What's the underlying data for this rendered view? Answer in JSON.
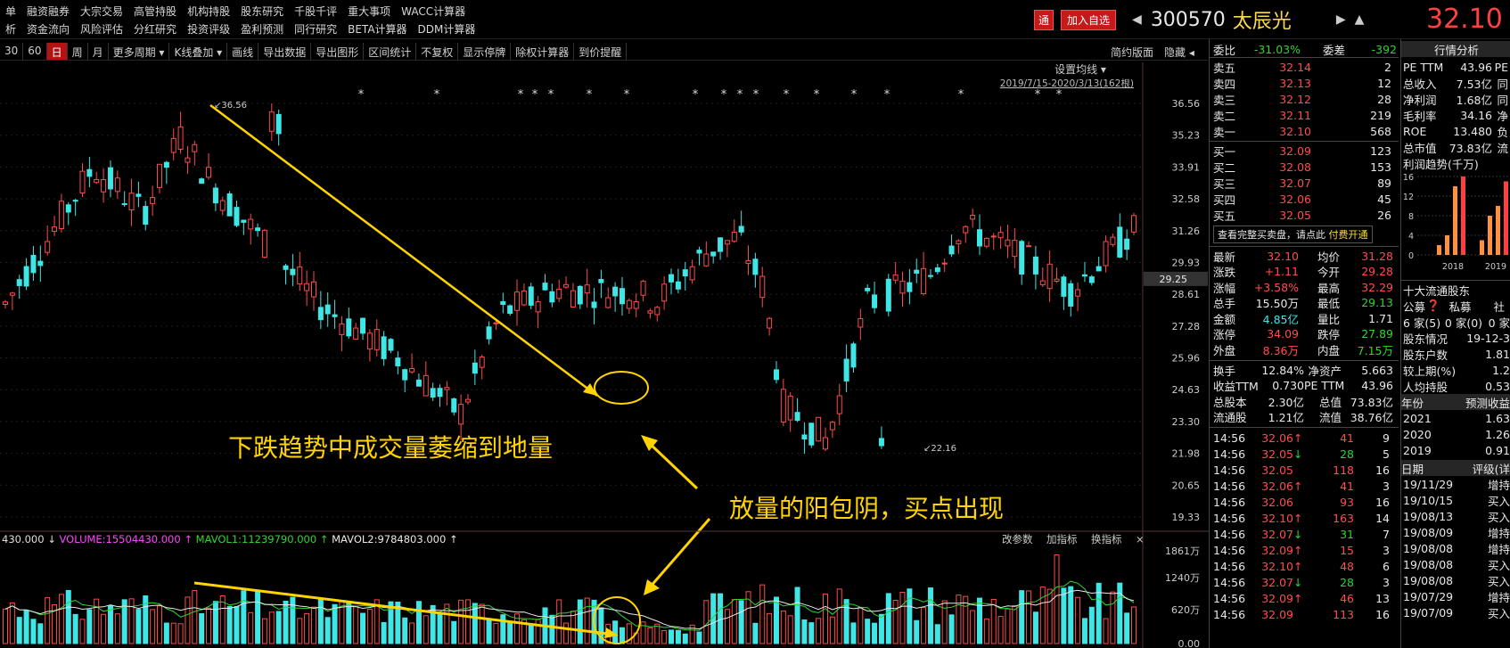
{
  "menu": {
    "row1": [
      "单",
      "融资融券",
      "大宗交易",
      "高管持股",
      "机构持股",
      "股东研究",
      "千股千评",
      "重大事项",
      "WACC计算器"
    ],
    "row2": [
      "析",
      "资金流向",
      "风险评估",
      "分红研究",
      "投资评级",
      "盈利预测",
      "同行研究",
      "BETA计算器",
      "DDM计算器"
    ]
  },
  "header": {
    "tong_label": "通",
    "add_watch_label": "加入自选",
    "code": "300570",
    "name": "太辰光",
    "price": "32.10"
  },
  "toolbar": {
    "items": [
      "30",
      "60",
      "日",
      "周",
      "月",
      "更多周期 ▾",
      "K线叠加 ▾",
      "画线",
      "导出数据",
      "导出图形",
      "区间统计",
      "不复权",
      "显示停牌",
      "除权计算器",
      "到价提醒"
    ],
    "active_index": 2,
    "right": [
      "简约版面",
      "隐藏 ◂"
    ]
  },
  "chart": {
    "settings_label": "设置均线 ▾",
    "date_range": "2019/7/15-2020/3/13(162根)",
    "price_ticks": [
      "36.56",
      "35.23",
      "33.91",
      "32.58",
      "31.26",
      "29.93",
      "28.61",
      "27.28",
      "25.96",
      "24.63",
      "23.30",
      "21.98",
      "20.65",
      "19.33"
    ],
    "current_price_tag": "29.25",
    "high_label": "36.56",
    "low_label": "22.16",
    "annotation_1": "下跌趋势中成交量萎缩到地量",
    "annotation_2": "放量的阳包阴，买点出现",
    "volume_legend": {
      "prefix": "430.000 ↓",
      "volume": "VOLUME:15504430.000 ↑",
      "mavol1": "MAVOL1:11239790.000 ↑",
      "mavol2": "MAVOL2:9784803.000 ↑"
    },
    "volume_buttons": [
      "改参数",
      "加指标",
      "换指标",
      "×"
    ],
    "volume_ticks": [
      "1861万",
      "1240万",
      "620万",
      "0.00"
    ],
    "colors": {
      "up": "#ff4b4b",
      "down": "#3fe6e6",
      "annotation": "#ffd400",
      "mavol1": "#2fd52f",
      "mavol2": "#e8e8e8"
    }
  },
  "quote": {
    "weibi_label": "委比",
    "weibi": "-31.03%",
    "weicha_label": "委差",
    "weicha": "-392",
    "tab_label": "行情分析",
    "asks": [
      {
        "label": "卖五",
        "price": "32.14",
        "vol": "2"
      },
      {
        "label": "卖四",
        "price": "32.13",
        "vol": "12"
      },
      {
        "label": "卖三",
        "price": "32.12",
        "vol": "28"
      },
      {
        "label": "卖二",
        "price": "32.11",
        "vol": "219"
      },
      {
        "label": "卖一",
        "price": "32.10",
        "vol": "568"
      }
    ],
    "bids": [
      {
        "label": "买一",
        "price": "32.09",
        "vol": "123"
      },
      {
        "label": "买二",
        "price": "32.08",
        "vol": "153"
      },
      {
        "label": "买三",
        "price": "32.07",
        "vol": "89"
      },
      {
        "label": "买四",
        "price": "32.06",
        "vol": "45"
      },
      {
        "label": "买五",
        "price": "32.05",
        "vol": "26"
      }
    ],
    "full_book_label": "查看完整买卖盘，请点此",
    "pay_label": "付费开通",
    "stats": [
      [
        "最新",
        "32.10",
        "均价",
        "31.28"
      ],
      [
        "涨跌",
        "+1.11",
        "今开",
        "29.28"
      ],
      [
        "涨幅",
        "+3.58%",
        "最高",
        "32.29"
      ],
      [
        "总手",
        "15.50万",
        "最低",
        "29.13"
      ],
      [
        "金额",
        "4.85亿",
        "量比",
        "1.71"
      ],
      [
        "涨停",
        "34.09",
        "跌停",
        "27.89"
      ],
      [
        "外盘",
        "8.36万",
        "内盘",
        "7.15万"
      ]
    ],
    "stats2": [
      [
        "换手",
        "12.84%",
        "净资产",
        "5.663"
      ],
      [
        "收益TTM",
        "0.730",
        "PE TTM",
        "43.96"
      ],
      [
        "总股本",
        "2.30亿",
        "总值",
        "73.83亿"
      ],
      [
        "流通股",
        "1.21亿",
        "流值",
        "38.76亿"
      ]
    ],
    "ticks": [
      [
        "14:56",
        "32.06",
        "↑",
        "41",
        "9"
      ],
      [
        "14:56",
        "32.05",
        "↓",
        "28",
        "5"
      ],
      [
        "14:56",
        "32.05",
        "",
        "118",
        "16"
      ],
      [
        "14:56",
        "32.06",
        "↑",
        "41",
        "3"
      ],
      [
        "14:56",
        "32.06",
        "",
        "93",
        "16"
      ],
      [
        "14:56",
        "32.10",
        "↑",
        "163",
        "14"
      ],
      [
        "14:56",
        "32.07",
        "↓",
        "31",
        "7"
      ],
      [
        "14:56",
        "32.09",
        "↑",
        "15",
        "3"
      ],
      [
        "14:56",
        "32.10",
        "↑",
        "48",
        "6"
      ],
      [
        "14:56",
        "32.07",
        "↓",
        "28",
        "3"
      ],
      [
        "14:56",
        "32.09",
        "↑",
        "46",
        "13"
      ],
      [
        "14:56",
        "32.09",
        "",
        "113",
        "16"
      ]
    ]
  },
  "fundamentals": {
    "rows": [
      [
        "PE TTM",
        "43.96",
        "PE"
      ],
      [
        "总收入",
        "7.53亿",
        "同"
      ],
      [
        "净利润",
        "1.68亿",
        "同"
      ],
      [
        "毛利率",
        "34.16",
        "净"
      ],
      [
        "ROE",
        "13.480",
        "负"
      ],
      [
        "总市值",
        "73.83亿",
        "流"
      ]
    ],
    "profit_trend_label": "利润趋势(千万)",
    "profit_axis": [
      "16",
      "12",
      "8",
      "4",
      "0"
    ],
    "profit_years": [
      "2018",
      "2019"
    ],
    "profit_bars": [
      2,
      4,
      14,
      16,
      3,
      8,
      10,
      15
    ],
    "holders_label": "十大流通股东",
    "holder_types": [
      "公募",
      "私募",
      "社"
    ],
    "holder_counts": [
      "6 家(5)",
      "0 家(0)",
      "0 家"
    ],
    "shareholder_info": [
      [
        "股东情况",
        "19-12-3"
      ],
      [
        "股东户数",
        "1.81"
      ],
      [
        "较上期(%)",
        "1.2"
      ],
      [
        "人均持股",
        "0.53"
      ]
    ],
    "eps_header": [
      "年份",
      "预测收益"
    ],
    "eps_rows": [
      [
        "2021",
        "1.63"
      ],
      [
        "2020",
        "1.26"
      ],
      [
        "2019",
        "0.91"
      ]
    ],
    "rating_header": [
      "日期",
      "评级(详"
    ],
    "ratings": [
      [
        "19/11/29",
        "增持"
      ],
      [
        "19/10/15",
        "买入"
      ],
      [
        "19/08/13",
        "买入"
      ],
      [
        "19/08/09",
        "增持"
      ],
      [
        "19/08/08",
        "增持"
      ],
      [
        "19/08/08",
        "买入"
      ],
      [
        "19/08/08",
        "买入"
      ],
      [
        "19/07/29",
        "增持"
      ],
      [
        "19/07/09",
        "买入"
      ]
    ]
  }
}
